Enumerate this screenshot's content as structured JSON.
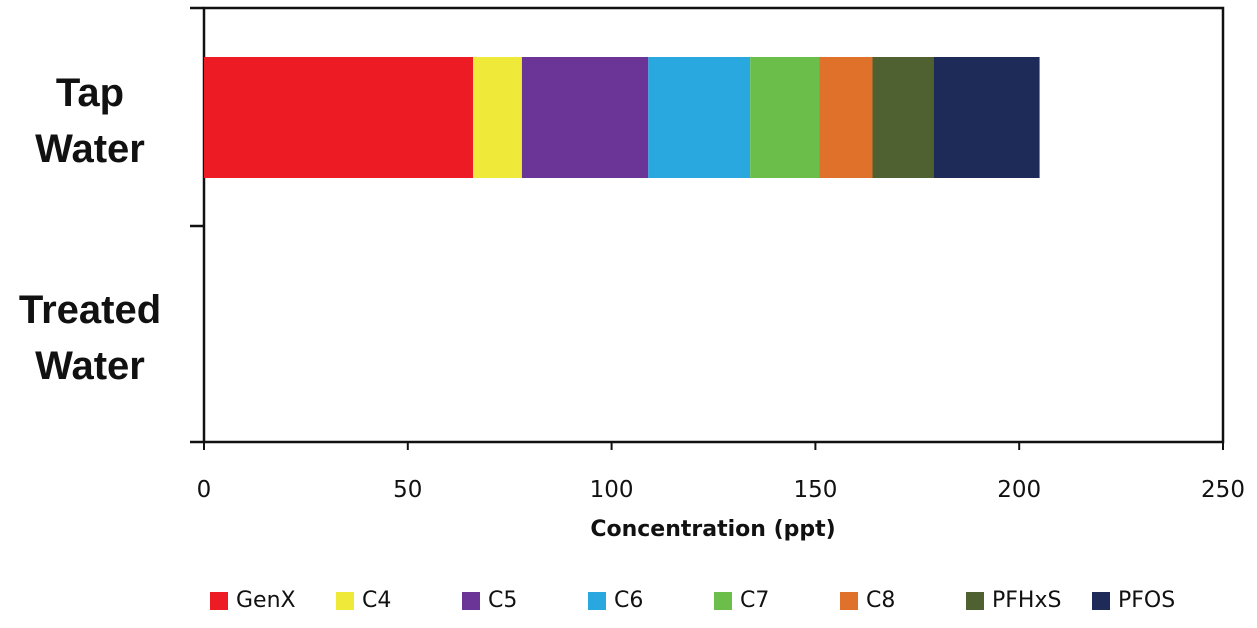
{
  "chart_data": {
    "type": "bar",
    "orientation": "horizontal",
    "stacked": true,
    "categories": [
      "Tap\nWater",
      "Treated\nWater"
    ],
    "series": [
      {
        "name": "GenX",
        "color": "#ED1C24",
        "values": [
          66,
          0
        ]
      },
      {
        "name": "C4",
        "color": "#EFEA3A",
        "values": [
          12,
          0
        ]
      },
      {
        "name": "C5",
        "color": "#6B3597",
        "values": [
          31,
          0
        ]
      },
      {
        "name": "C6",
        "color": "#29A8E0",
        "values": [
          25,
          0
        ]
      },
      {
        "name": "C7",
        "color": "#6CBE4A",
        "values": [
          17,
          0
        ]
      },
      {
        "name": "C8",
        "color": "#E0712A",
        "values": [
          13,
          0
        ]
      },
      {
        "name": "PFHxS",
        "color": "#4F6130",
        "values": [
          15,
          0
        ]
      },
      {
        "name": "PFOS",
        "color": "#1E2A58",
        "values": [
          26,
          0
        ]
      }
    ],
    "xlabel": "Concentration (ppt)",
    "ylabel": "",
    "xlim": [
      0,
      250
    ],
    "x_ticks": [
      "0",
      "50",
      "100",
      "150",
      "200",
      "250"
    ],
    "grid": false,
    "legend_position": "bottom"
  }
}
